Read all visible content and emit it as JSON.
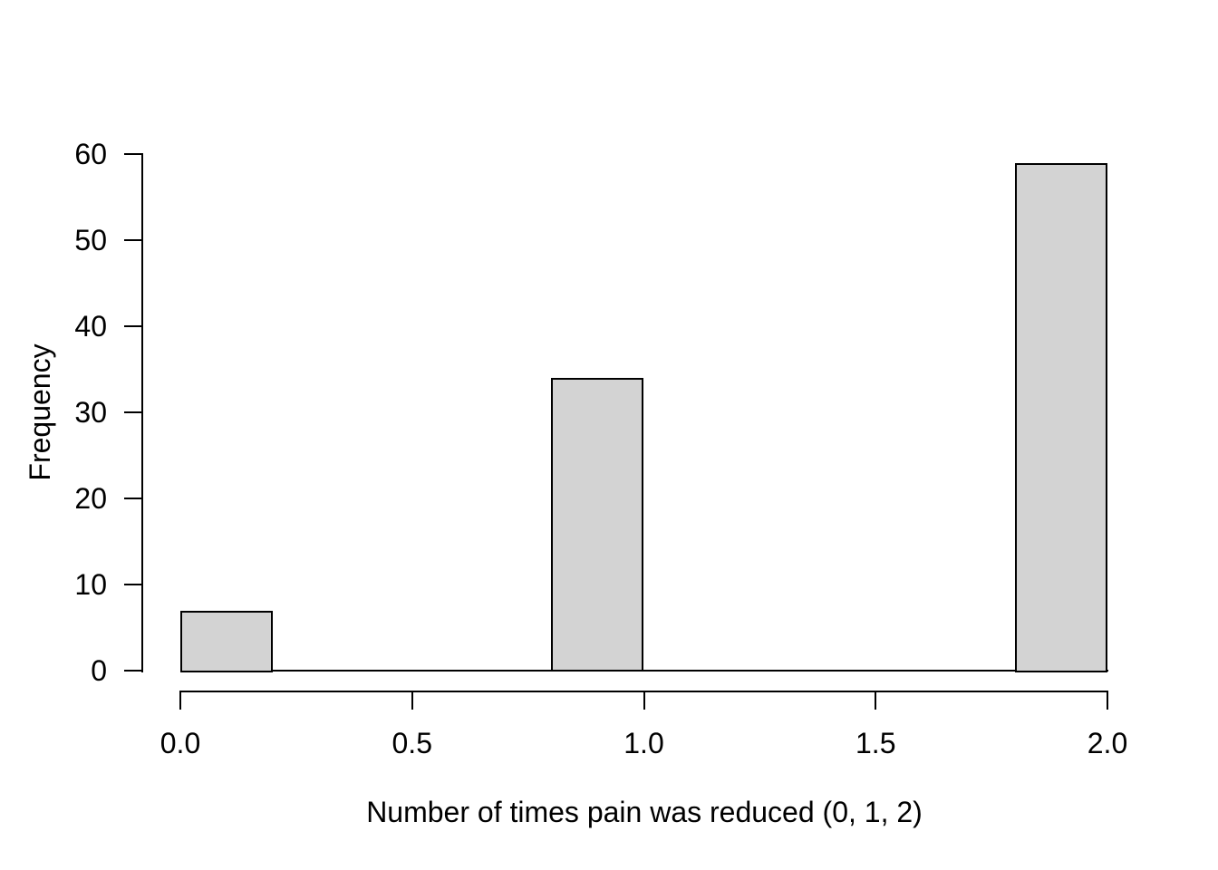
{
  "figure": {
    "background": "#ffffff",
    "axis_color": "#000000",
    "text_color": "#000000"
  },
  "chart_data": {
    "type": "bar",
    "subtype": "histogram",
    "title": "",
    "xlabel": "Number of times pain was reduced (0, 1, 2)",
    "ylabel": "Frequency",
    "xlim": [
      0,
      2
    ],
    "ylim": [
      0,
      60
    ],
    "grid": false,
    "legend": false,
    "x_tick_values": [
      0,
      0.5,
      1,
      1.5,
      2
    ],
    "x_tick_labels": [
      "0.0",
      "0.5",
      "1.0",
      "1.5",
      "2.0"
    ],
    "y_tick_values": [
      0,
      10,
      20,
      30,
      40,
      50,
      60
    ],
    "y_tick_labels": [
      "0",
      "10",
      "20",
      "30",
      "40",
      "50",
      "60"
    ],
    "bin_width": 0.2,
    "bins": [
      {
        "x0": 0.0,
        "x1": 0.2,
        "count": 7
      },
      {
        "x0": 0.2,
        "x1": 0.4,
        "count": 0
      },
      {
        "x0": 0.4,
        "x1": 0.6,
        "count": 0
      },
      {
        "x0": 0.6,
        "x1": 0.8,
        "count": 0
      },
      {
        "x0": 0.8,
        "x1": 1.0,
        "count": 34
      },
      {
        "x0": 1.0,
        "x1": 1.2,
        "count": 0
      },
      {
        "x0": 1.2,
        "x1": 1.4,
        "count": 0
      },
      {
        "x0": 1.4,
        "x1": 1.6,
        "count": 0
      },
      {
        "x0": 1.6,
        "x1": 1.8,
        "count": 0
      },
      {
        "x0": 1.8,
        "x1": 2.0,
        "count": 59
      }
    ],
    "bar_fill": "#d3d3d3",
    "bar_border": "#000000"
  }
}
